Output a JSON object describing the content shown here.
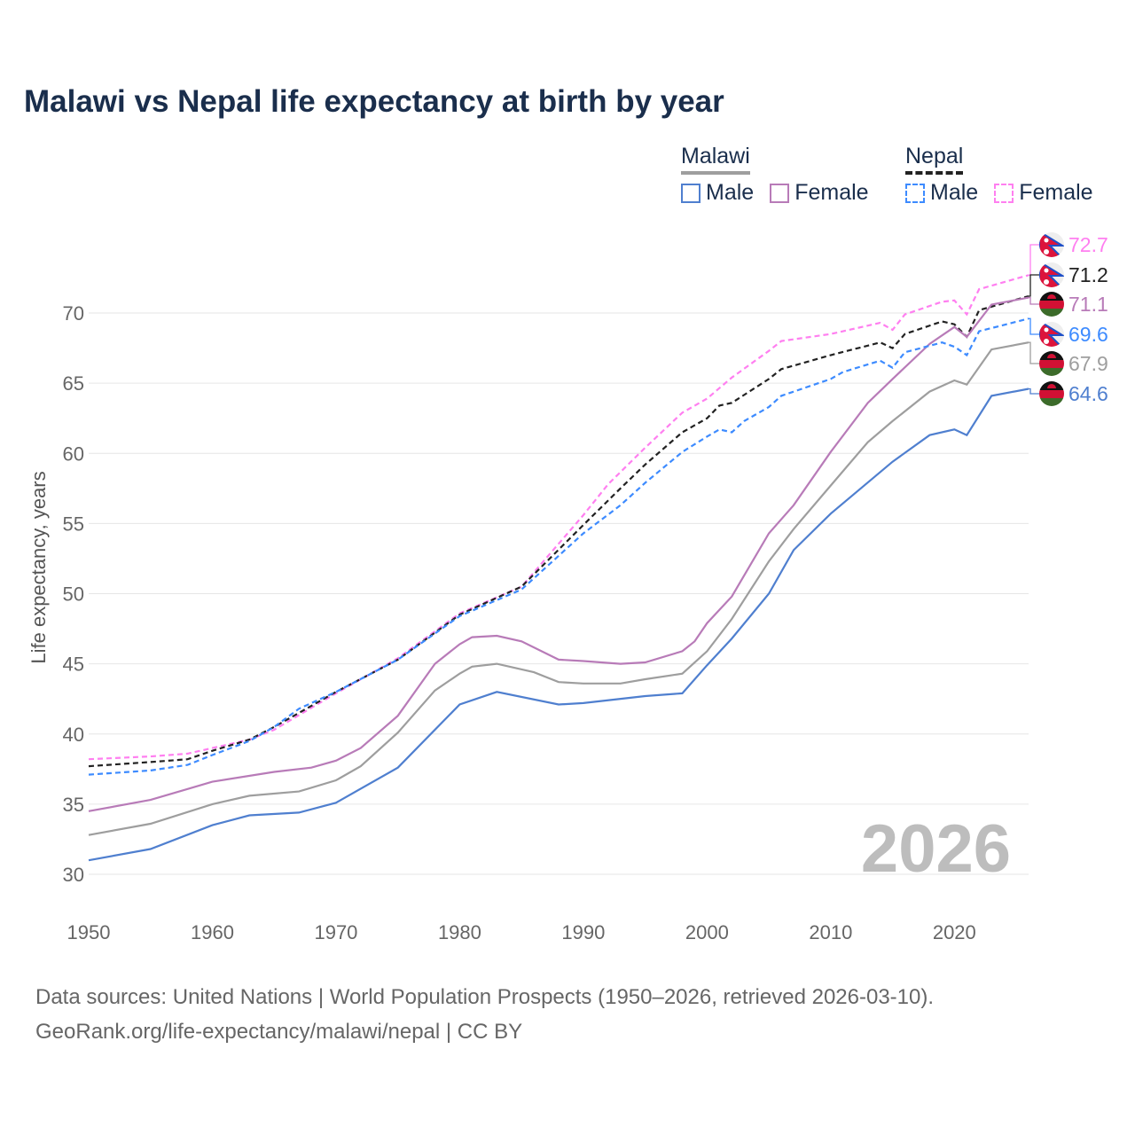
{
  "title": "Malawi vs Nepal life expectancy at birth by year",
  "legend": {
    "groups": [
      {
        "name": "Malawi",
        "items": [
          "Male",
          "Female"
        ]
      },
      {
        "name": "Nepal",
        "items": [
          "Male",
          "Female"
        ]
      }
    ]
  },
  "watermark_year": "2026",
  "footer": {
    "line1": "Data sources: United Nations | World Population Prospects (1950–2026, retrieved 2026-03-10).",
    "line2": "GeoRank.org/life-expectancy/malawi/nepal | CC BY"
  },
  "chart_data": {
    "type": "line",
    "title": "Malawi vs Nepal life expectancy at birth by year",
    "xlabel": "",
    "ylabel": "Life expectancy, years",
    "xlim": [
      1950,
      2026
    ],
    "ylim": [
      30,
      72.5
    ],
    "xticks": [
      1950,
      1960,
      1970,
      1980,
      1990,
      2000,
      2010,
      2020
    ],
    "yticks": [
      30,
      35,
      40,
      45,
      50,
      55,
      60,
      65,
      70
    ],
    "grid": true,
    "legend_position": "top-right",
    "series": [
      {
        "name": "Nepal Female",
        "country": "Nepal",
        "color": "#ff7ff0",
        "dash": true,
        "end_label": "72.7",
        "flag": "nepal",
        "points": [
          [
            1950,
            38.2
          ],
          [
            1955,
            38.4
          ],
          [
            1958,
            38.6
          ],
          [
            1960,
            39.0
          ],
          [
            1963,
            39.6
          ],
          [
            1965,
            40.3
          ],
          [
            1970,
            42.9
          ],
          [
            1975,
            45.4
          ],
          [
            1980,
            48.6
          ],
          [
            1985,
            50.5
          ],
          [
            1990,
            55.6
          ],
          [
            1992,
            57.8
          ],
          [
            1995,
            60.4
          ],
          [
            1998,
            62.9
          ],
          [
            2000,
            63.9
          ],
          [
            2002,
            65.4
          ],
          [
            2005,
            67.3
          ],
          [
            2006,
            68.0
          ],
          [
            2010,
            68.5
          ],
          [
            2014,
            69.3
          ],
          [
            2015,
            68.8
          ],
          [
            2016,
            69.9
          ],
          [
            2019,
            70.8
          ],
          [
            2020,
            70.9
          ],
          [
            2021,
            69.9
          ],
          [
            2022,
            71.7
          ],
          [
            2026,
            72.7
          ]
        ]
      },
      {
        "name": "Nepal",
        "country": "Nepal",
        "color": "#222222",
        "dash": true,
        "end_label": "71.2",
        "flag": "nepal",
        "points": [
          [
            1950,
            37.7
          ],
          [
            1955,
            38.0
          ],
          [
            1958,
            38.2
          ],
          [
            1960,
            38.8
          ],
          [
            1963,
            39.6
          ],
          [
            1965,
            40.5
          ],
          [
            1970,
            43.0
          ],
          [
            1975,
            45.3
          ],
          [
            1980,
            48.5
          ],
          [
            1985,
            50.5
          ],
          [
            1990,
            54.9
          ],
          [
            1993,
            57.5
          ],
          [
            1995,
            59.2
          ],
          [
            1998,
            61.5
          ],
          [
            2000,
            62.5
          ],
          [
            2001,
            63.4
          ],
          [
            2002,
            63.6
          ],
          [
            2005,
            65.3
          ],
          [
            2006,
            66.0
          ],
          [
            2010,
            67.0
          ],
          [
            2014,
            67.9
          ],
          [
            2015,
            67.5
          ],
          [
            2016,
            68.5
          ],
          [
            2019,
            69.4
          ],
          [
            2020,
            69.2
          ],
          [
            2021,
            68.3
          ],
          [
            2022,
            70.2
          ],
          [
            2026,
            71.2
          ]
        ]
      },
      {
        "name": "Malawi Female",
        "country": "Malawi",
        "color": "#b87bb8",
        "dash": false,
        "end_label": "71.1",
        "flag": "malawi",
        "points": [
          [
            1950,
            34.5
          ],
          [
            1955,
            35.3
          ],
          [
            1960,
            36.6
          ],
          [
            1965,
            37.3
          ],
          [
            1968,
            37.6
          ],
          [
            1970,
            38.1
          ],
          [
            1972,
            39.0
          ],
          [
            1975,
            41.3
          ],
          [
            1978,
            45.0
          ],
          [
            1980,
            46.4
          ],
          [
            1981,
            46.9
          ],
          [
            1983,
            47.0
          ],
          [
            1985,
            46.6
          ],
          [
            1988,
            45.3
          ],
          [
            1990,
            45.2
          ],
          [
            1993,
            45.0
          ],
          [
            1995,
            45.1
          ],
          [
            1998,
            45.9
          ],
          [
            1999,
            46.6
          ],
          [
            2000,
            47.9
          ],
          [
            2002,
            49.8
          ],
          [
            2005,
            54.3
          ],
          [
            2007,
            56.3
          ],
          [
            2010,
            60.1
          ],
          [
            2013,
            63.6
          ],
          [
            2015,
            65.3
          ],
          [
            2018,
            67.8
          ],
          [
            2020,
            69.0
          ],
          [
            2021,
            68.3
          ],
          [
            2023,
            70.6
          ],
          [
            2026,
            71.1
          ]
        ]
      },
      {
        "name": "Nepal Male",
        "country": "Nepal",
        "color": "#3d8bff",
        "dash": true,
        "end_label": "69.6",
        "flag": "nepal",
        "points": [
          [
            1950,
            37.1
          ],
          [
            1955,
            37.4
          ],
          [
            1958,
            37.8
          ],
          [
            1960,
            38.5
          ],
          [
            1963,
            39.5
          ],
          [
            1965,
            40.5
          ],
          [
            1967,
            41.8
          ],
          [
            1970,
            43.0
          ],
          [
            1975,
            45.3
          ],
          [
            1980,
            48.4
          ],
          [
            1985,
            50.3
          ],
          [
            1990,
            54.3
          ],
          [
            1993,
            56.3
          ],
          [
            1995,
            57.9
          ],
          [
            1998,
            60.1
          ],
          [
            2000,
            61.2
          ],
          [
            2001,
            61.7
          ],
          [
            2002,
            61.5
          ],
          [
            2003,
            62.3
          ],
          [
            2005,
            63.3
          ],
          [
            2006,
            64.1
          ],
          [
            2010,
            65.3
          ],
          [
            2011,
            65.8
          ],
          [
            2014,
            66.6
          ],
          [
            2015,
            66.1
          ],
          [
            2016,
            67.2
          ],
          [
            2019,
            67.9
          ],
          [
            2020,
            67.6
          ],
          [
            2021,
            67.0
          ],
          [
            2022,
            68.7
          ],
          [
            2026,
            69.6
          ]
        ]
      },
      {
        "name": "Malawi",
        "country": "Malawi",
        "color": "#9e9e9e",
        "dash": false,
        "end_label": "67.9",
        "flag": "malawi",
        "points": [
          [
            1950,
            32.8
          ],
          [
            1955,
            33.6
          ],
          [
            1960,
            35.0
          ],
          [
            1963,
            35.6
          ],
          [
            1967,
            35.9
          ],
          [
            1970,
            36.7
          ],
          [
            1972,
            37.7
          ],
          [
            1975,
            40.1
          ],
          [
            1978,
            43.1
          ],
          [
            1980,
            44.3
          ],
          [
            1981,
            44.8
          ],
          [
            1983,
            45.0
          ],
          [
            1986,
            44.4
          ],
          [
            1988,
            43.7
          ],
          [
            1990,
            43.6
          ],
          [
            1993,
            43.6
          ],
          [
            1995,
            43.9
          ],
          [
            1998,
            44.3
          ],
          [
            2000,
            45.9
          ],
          [
            2002,
            48.2
          ],
          [
            2005,
            52.3
          ],
          [
            2007,
            54.6
          ],
          [
            2010,
            57.7
          ],
          [
            2013,
            60.8
          ],
          [
            2015,
            62.3
          ],
          [
            2018,
            64.4
          ],
          [
            2020,
            65.2
          ],
          [
            2021,
            64.9
          ],
          [
            2023,
            67.4
          ],
          [
            2026,
            67.9
          ]
        ]
      },
      {
        "name": "Malawi Male",
        "country": "Malawi",
        "color": "#4f7fcf",
        "dash": false,
        "end_label": "64.6",
        "flag": "malawi",
        "points": [
          [
            1950,
            31.0
          ],
          [
            1955,
            31.8
          ],
          [
            1960,
            33.5
          ],
          [
            1963,
            34.2
          ],
          [
            1967,
            34.4
          ],
          [
            1970,
            35.1
          ],
          [
            1975,
            37.6
          ],
          [
            1980,
            42.1
          ],
          [
            1983,
            43.0
          ],
          [
            1988,
            42.1
          ],
          [
            1990,
            42.2
          ],
          [
            1995,
            42.7
          ],
          [
            1998,
            42.9
          ],
          [
            2000,
            44.9
          ],
          [
            2002,
            46.8
          ],
          [
            2005,
            50.0
          ],
          [
            2007,
            53.1
          ],
          [
            2010,
            55.7
          ],
          [
            2015,
            59.4
          ],
          [
            2018,
            61.3
          ],
          [
            2020,
            61.7
          ],
          [
            2021,
            61.3
          ],
          [
            2023,
            64.1
          ],
          [
            2026,
            64.6
          ]
        ]
      }
    ]
  }
}
